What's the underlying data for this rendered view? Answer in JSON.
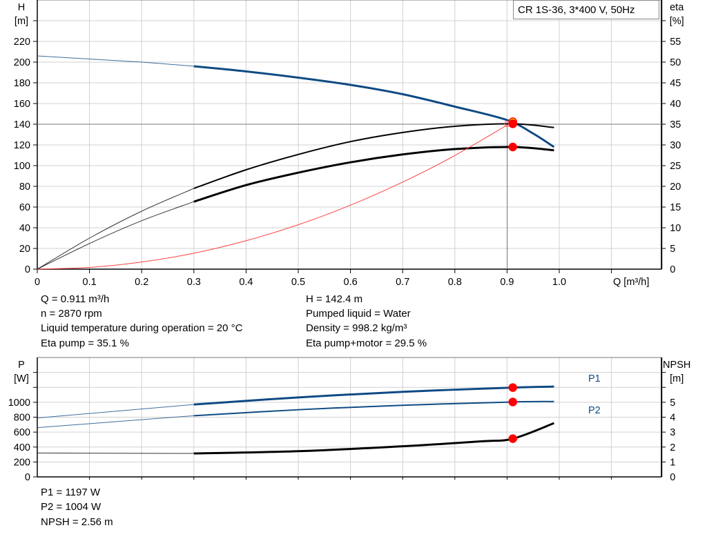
{
  "chart_data": [
    {
      "type": "line",
      "title": "CR 1S-36, 3*400 V, 50Hz",
      "xlabel": "Q [m³/h]",
      "ylabel": [
        "H",
        "[m]"
      ],
      "y2label": [
        "eta",
        "[%]"
      ],
      "xlim": [
        0,
        1.2
      ],
      "ylim": [
        0,
        260
      ],
      "y2lim": [
        0,
        65
      ],
      "xticks": [
        0,
        0.1,
        0.2,
        0.3,
        0.4,
        0.5,
        0.6,
        0.7,
        0.8,
        0.9,
        1.0
      ],
      "xtick_labels": [
        "0",
        "0.1",
        "0.2",
        "0.3",
        "0.4",
        "0.5",
        "0.6",
        "0.7",
        "0.8",
        "0.9",
        "1.0"
      ],
      "yticks": [
        0,
        20,
        40,
        60,
        80,
        100,
        120,
        140,
        160,
        180,
        200,
        220
      ],
      "y2ticks": [
        0,
        5,
        10,
        15,
        20,
        25,
        30,
        35,
        40,
        45,
        50,
        55
      ],
      "grid": true,
      "series": [
        {
          "id": "head",
          "axis": "left",
          "color": "#0e4a83",
          "x": [
            0,
            0.1,
            0.2,
            0.3,
            0.4,
            0.5,
            0.6,
            0.7,
            0.8,
            0.9,
            0.95,
            0.99
          ],
          "y": [
            206,
            203,
            200,
            196,
            191,
            185,
            178,
            169,
            157,
            144,
            131,
            118
          ]
        },
        {
          "id": "eta-pump",
          "axis": "right",
          "color": "#000000",
          "x": [
            0,
            0.1,
            0.2,
            0.3,
            0.4,
            0.5,
            0.6,
            0.7,
            0.8,
            0.911,
            0.99
          ],
          "y": [
            0,
            7.5,
            14,
            19.5,
            24,
            27.7,
            30.8,
            33,
            34.5,
            35.1,
            34.2
          ]
        },
        {
          "id": "eta-pump-motor",
          "axis": "right",
          "color": "#000000",
          "x": [
            0,
            0.1,
            0.2,
            0.3,
            0.4,
            0.5,
            0.6,
            0.7,
            0.8,
            0.911,
            0.99
          ],
          "y": [
            0,
            6.2,
            11.7,
            16.3,
            20.3,
            23.3,
            25.8,
            27.7,
            29,
            29.5,
            28.7
          ]
        },
        {
          "id": "system",
          "axis": "left",
          "color": "#ff4040",
          "x": [
            0,
            0.1,
            0.2,
            0.3,
            0.4,
            0.5,
            0.6,
            0.7,
            0.8,
            0.911
          ],
          "y": [
            0,
            1.7,
            6.9,
            15.4,
            27.5,
            42.9,
            61.8,
            84.1,
            109.8,
            142.4
          ]
        }
      ],
      "duty_point": {
        "q": 0.911,
        "h": 142.4,
        "eta_pump": 35.1,
        "eta_pump_motor": 29.5
      }
    },
    {
      "type": "line",
      "ylabel": [
        "P",
        "[W]"
      ],
      "y2label": [
        "NPSH",
        "[m]"
      ],
      "xlim": [
        0,
        1.2
      ],
      "ylim": [
        0,
        1600
      ],
      "y2lim": [
        0,
        8
      ],
      "yticks": [
        0,
        200,
        400,
        600,
        800,
        1000
      ],
      "y2ticks": [
        0,
        1,
        2,
        3,
        4,
        5
      ],
      "grid": true,
      "series": [
        {
          "id": "p1",
          "name": "P1",
          "axis": "left",
          "color": "#0e4a83",
          "x": [
            0,
            0.3,
            0.5,
            0.7,
            0.911,
            0.99
          ],
          "y": [
            790,
            970,
            1065,
            1140,
            1197,
            1210
          ]
        },
        {
          "id": "p2",
          "name": "P2",
          "axis": "left",
          "color": "#0e4a83",
          "x": [
            0,
            0.3,
            0.5,
            0.7,
            0.911,
            0.99
          ],
          "y": [
            660,
            820,
            900,
            960,
            1004,
            1010
          ]
        },
        {
          "id": "npsh",
          "axis": "right",
          "color": "#000000",
          "x": [
            0,
            0.3,
            0.5,
            0.7,
            0.85,
            0.911,
            0.99
          ],
          "y": [
            1.6,
            1.57,
            1.72,
            2.05,
            2.38,
            2.56,
            3.6
          ]
        }
      ],
      "duty_point": {
        "q": 0.911,
        "p1": 1197,
        "p2": 1004,
        "npsh": 2.56
      }
    }
  ],
  "readouts_top": {
    "left": [
      "Q = 0.911 m³/h",
      "n = 2870 rpm",
      "Liquid temperature during operation = 20 °C",
      "Eta pump = 35.1 %"
    ],
    "right": [
      "H = 142.4 m",
      "Pumped liquid = Water",
      "Density = 998.2 kg/m³",
      "Eta pump+motor = 29.5 %"
    ]
  },
  "readouts_bottom": [
    "P1 = 1197 W",
    "P2 = 1004 W",
    "NPSH = 2.56 m"
  ],
  "colors": {
    "curve_blue": "#0e4a83",
    "marker_red": "#ff0000",
    "marker_yellow": "#ffd800",
    "grid": "#d0d0d0"
  }
}
